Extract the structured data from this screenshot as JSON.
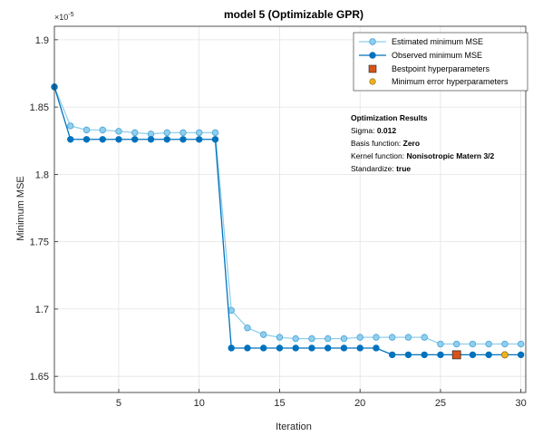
{
  "chart_data": {
    "type": "line",
    "title": "model 5 (Optimizable GPR)",
    "xlabel": "Iteration",
    "ylabel": "Minimum MSE",
    "y_exponent_label": "×10",
    "y_exponent_power": "-5",
    "xlim": [
      1,
      30.3
    ],
    "ylim": [
      1.638,
      1.91
    ],
    "xticks": [
      5,
      10,
      15,
      20,
      25,
      30
    ],
    "yticks": [
      1.65,
      1.7,
      1.75,
      1.8,
      1.85,
      1.9
    ],
    "ytick_labels": [
      "1.65",
      "1.7",
      "1.75",
      "1.8",
      "1.85",
      "1.9"
    ],
    "grid": true,
    "legend_position": "top-right",
    "x": [
      1,
      2,
      3,
      4,
      5,
      6,
      7,
      8,
      9,
      10,
      11,
      12,
      13,
      14,
      15,
      16,
      17,
      18,
      19,
      20,
      21,
      22,
      23,
      24,
      25,
      26,
      27,
      28,
      29,
      30
    ],
    "series": [
      {
        "name": "Estimated minimum MSE",
        "color": "#8fcfee",
        "edge": "#4aa3d6",
        "values": [
          1.865,
          1.836,
          1.833,
          1.833,
          1.832,
          1.831,
          1.83,
          1.831,
          1.831,
          1.831,
          1.831,
          1.699,
          1.686,
          1.681,
          1.679,
          1.678,
          1.678,
          1.678,
          1.678,
          1.679,
          1.679,
          1.679,
          1.679,
          1.679,
          1.674,
          1.674,
          1.674,
          1.674,
          1.674,
          1.674
        ]
      },
      {
        "name": "Observed minimum MSE",
        "color": "#0072bd",
        "edge": "#0072bd",
        "values": [
          1.865,
          1.826,
          1.826,
          1.826,
          1.826,
          1.826,
          1.826,
          1.826,
          1.826,
          1.826,
          1.826,
          1.671,
          1.671,
          1.671,
          1.671,
          1.671,
          1.671,
          1.671,
          1.671,
          1.671,
          1.671,
          1.666,
          1.666,
          1.666,
          1.666,
          1.666,
          1.666,
          1.666,
          1.666,
          1.666
        ]
      }
    ],
    "markers": [
      {
        "name": "Bestpoint hyperparameters",
        "x": 26,
        "y": 1.666,
        "color": "#d95319",
        "shape": "square"
      },
      {
        "name": "Minimum error hyperparameters",
        "x": 29,
        "y": 1.666,
        "color": "#edb120",
        "shape": "circle"
      }
    ],
    "results": {
      "heading": "Optimization Results",
      "lines": [
        {
          "label": "Sigma: ",
          "value": "0.012"
        },
        {
          "label": "Basis function: ",
          "value": "Zero"
        },
        {
          "label": "Kernel function: ",
          "value": "Nonisotropic Matern 3/2"
        },
        {
          "label": "Standardize: ",
          "value": "true"
        }
      ]
    }
  }
}
